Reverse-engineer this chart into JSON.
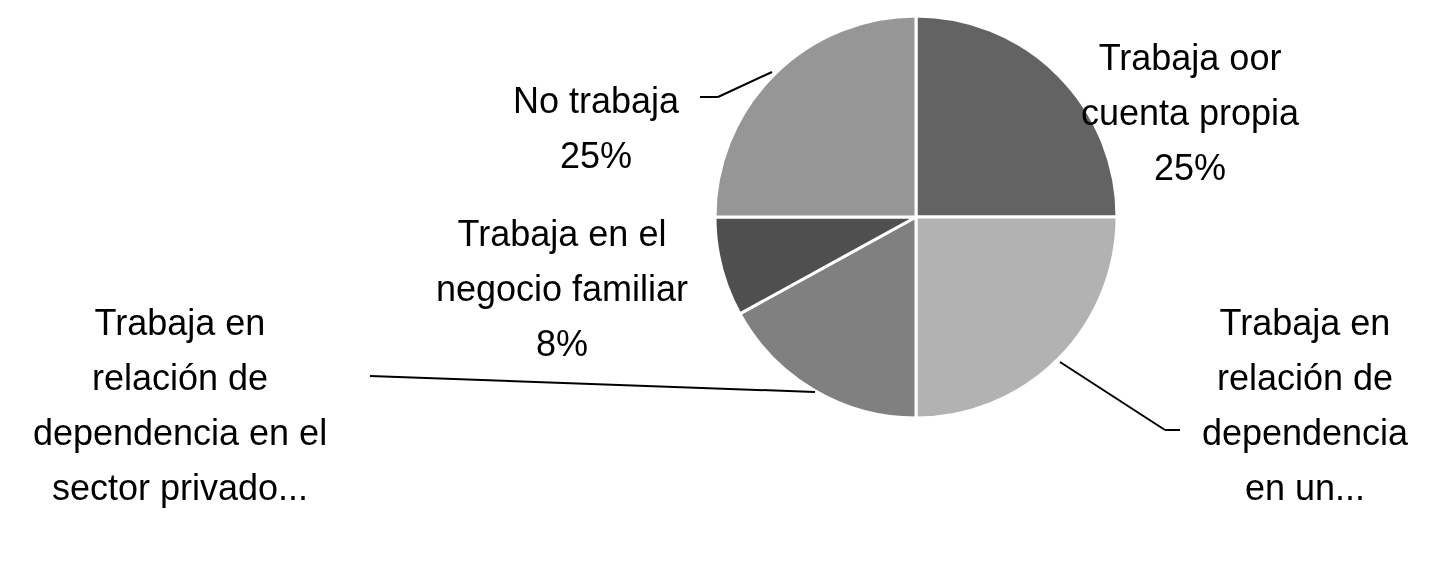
{
  "chart_data": {
    "type": "pie",
    "categories": [
      "Trabaja oor cuenta propia",
      "Trabaja en relación de dependencia en un...",
      "Trabaja en relación de dependencia en el sector privado...",
      "Trabaja en el negocio familiar",
      "No trabaja"
    ],
    "values": [
      25,
      25,
      17,
      8,
      25
    ],
    "value_labels": [
      "25%",
      null,
      null,
      "8%",
      "25%"
    ],
    "colors": [
      "#636363",
      "#b2b2b2",
      "#808080",
      "#4f4f4f",
      "#969696"
    ]
  }
}
